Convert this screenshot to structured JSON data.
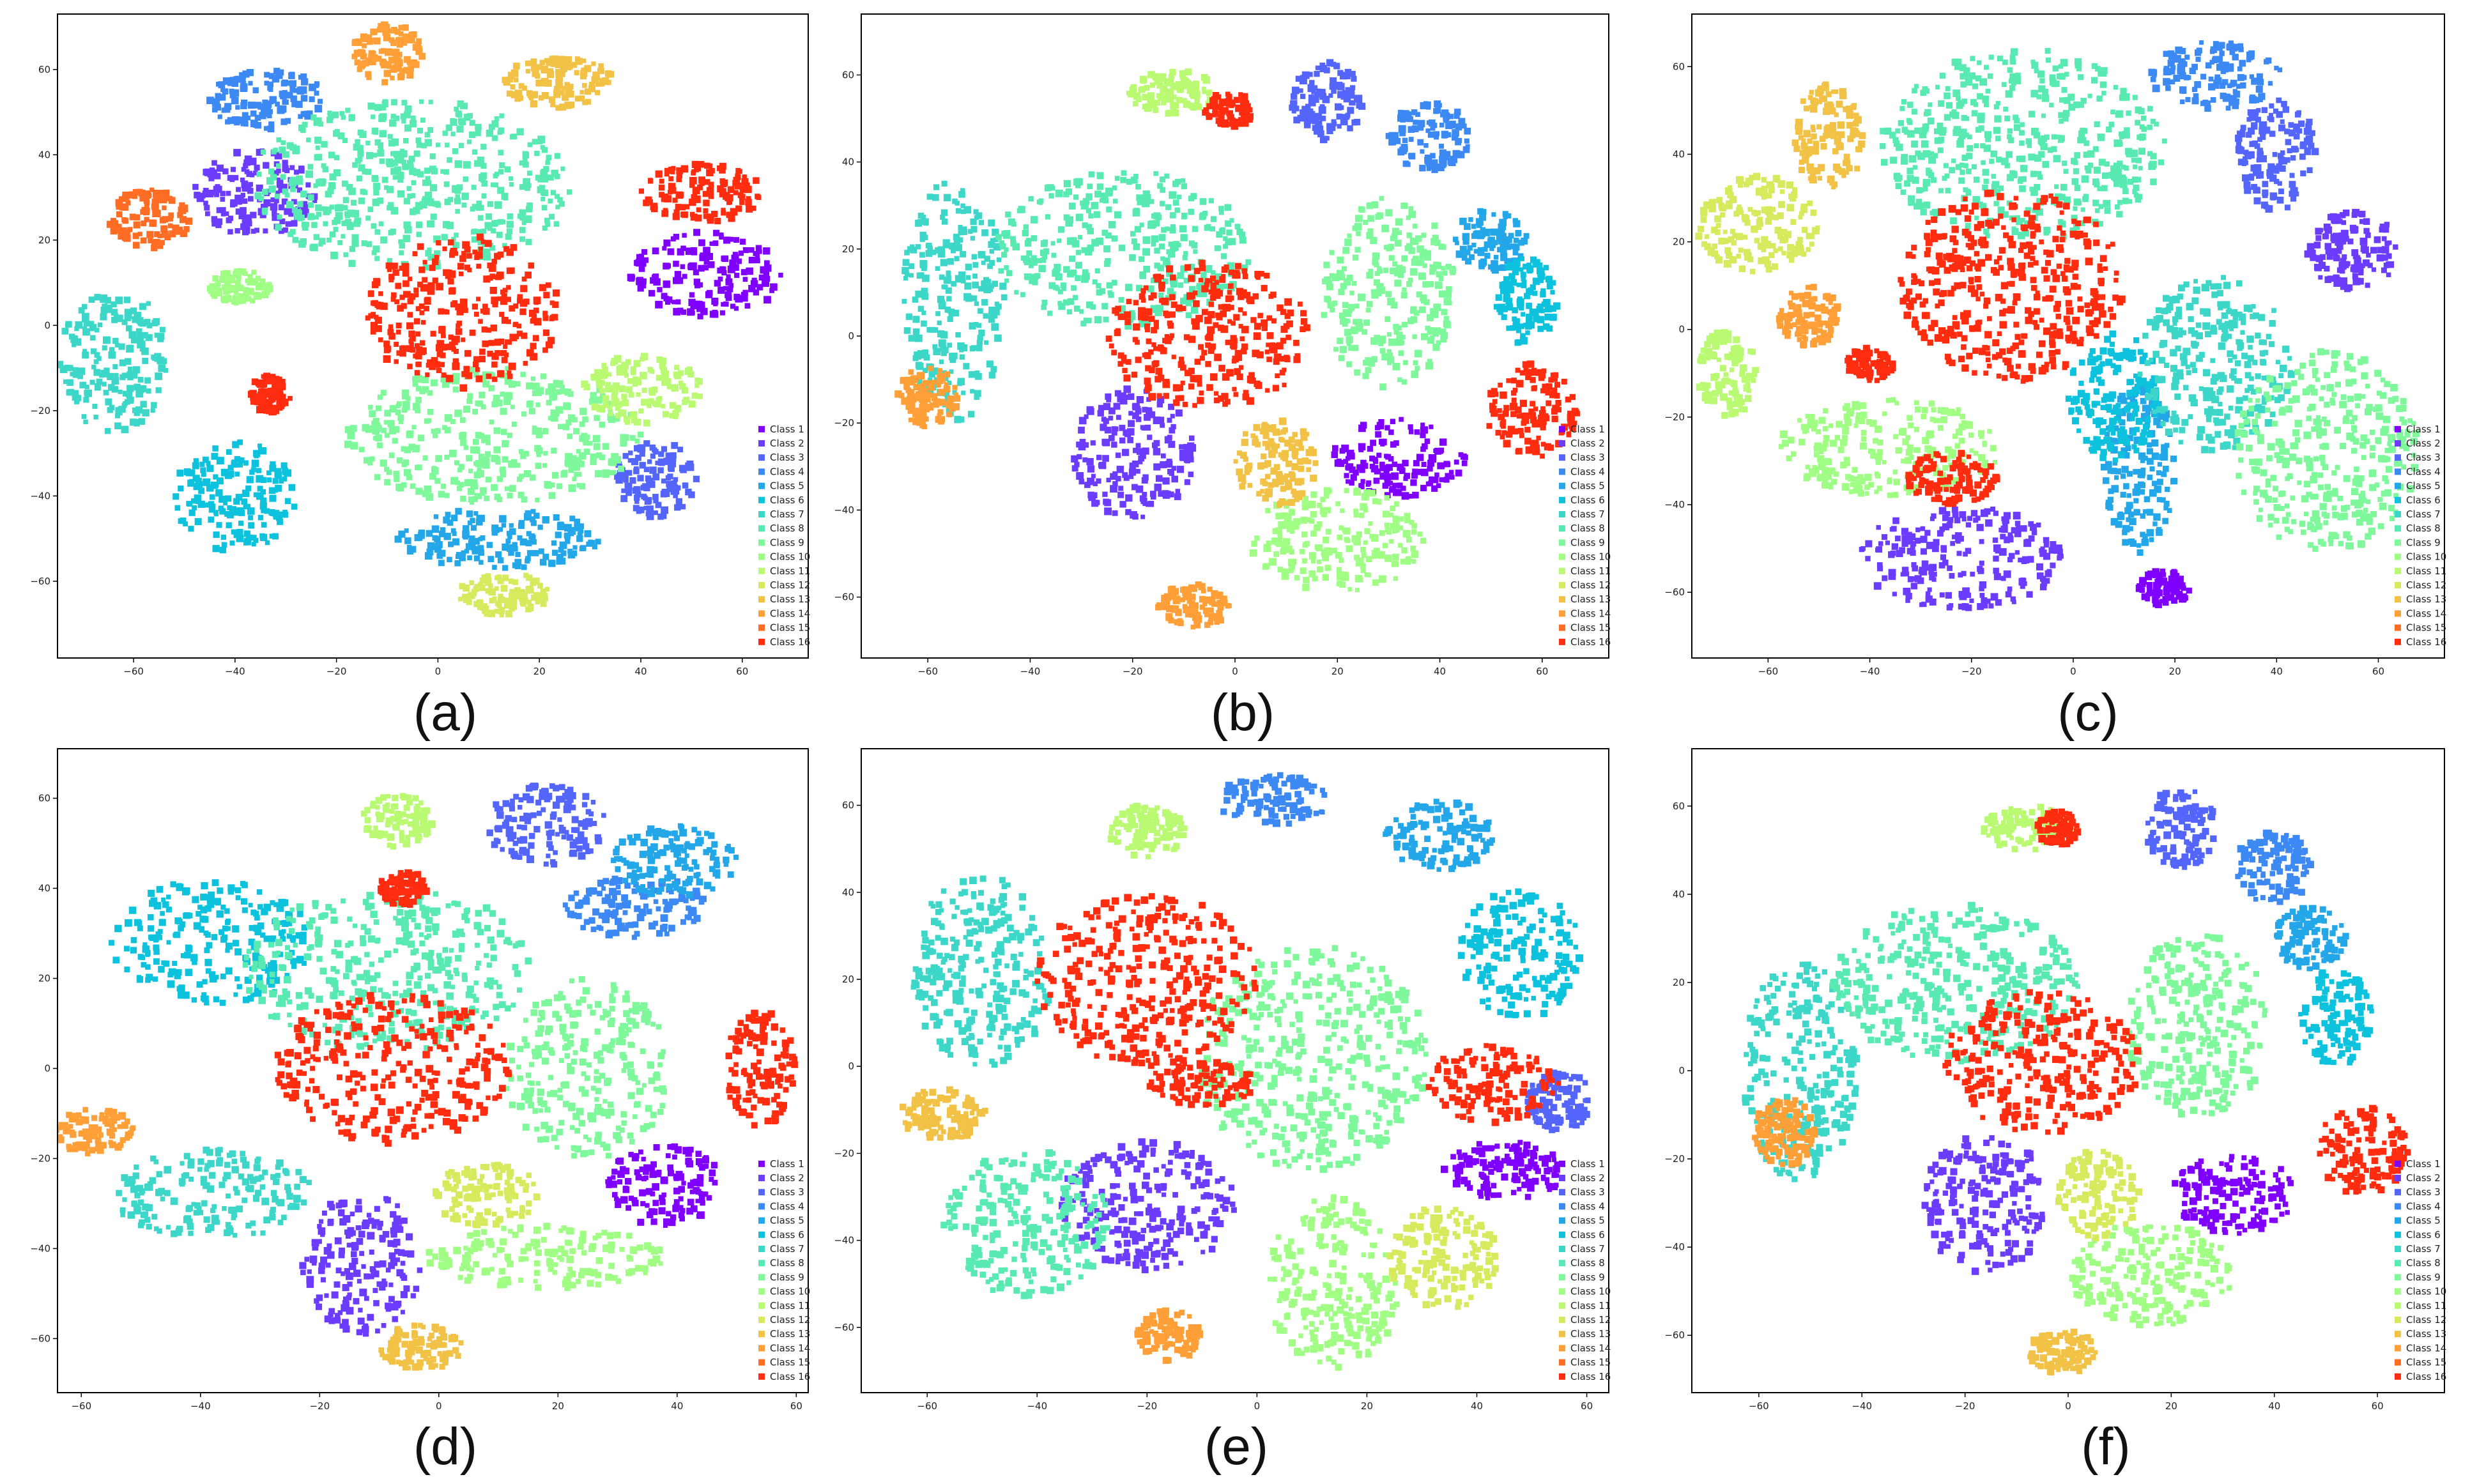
{
  "figure": {
    "layout": "2 rows x 3 columns"
  },
  "legend_labels": [
    "Class 1",
    "Class 2",
    "Class 3",
    "Class 4",
    "Class 5",
    "Class 6",
    "Class 7",
    "Class 8",
    "Class 9",
    "Class 10",
    "Class 11",
    "Class 12",
    "Class 13",
    "Class 14",
    "Class 15",
    "Class 16"
  ],
  "class_colors": [
    "#8000ff",
    "#6c3cfe",
    "#5465fb",
    "#3c89f4",
    "#24a7e9",
    "#0cc2dc",
    "#3dd7c9",
    "#59e9b3",
    "#7ef89b",
    "#a0fe85",
    "#bafa72",
    "#d7ea5d",
    "#f2c246",
    "#ff9f37",
    "#ff6c24",
    "#ff2c0f"
  ],
  "chart_data": [
    {
      "type": "scatter",
      "panel_label": "(a)",
      "title": "",
      "xlabel": "",
      "ylabel": "",
      "xlim": [
        -75,
        73
      ],
      "ylim": [
        -78,
        73
      ],
      "xticks": [
        -60,
        -40,
        -20,
        0,
        20,
        40,
        60
      ],
      "yticks": [
        -60,
        -40,
        -20,
        0,
        20,
        40,
        60
      ],
      "legend_position": "bottom-right",
      "clusters": [
        {
          "class": 1,
          "x": 53,
          "y": 12,
          "w": 30,
          "h": 20
        },
        {
          "class": 2,
          "x": -36,
          "y": 31,
          "w": 24,
          "h": 20
        },
        {
          "class": 3,
          "x": 43,
          "y": -36,
          "w": 16,
          "h": 18
        },
        {
          "class": 4,
          "x": -34,
          "y": 53,
          "w": 24,
          "h": 14
        },
        {
          "class": 5,
          "x": 12,
          "y": -50,
          "w": 40,
          "h": 14
        },
        {
          "class": 6,
          "x": -40,
          "y": -40,
          "w": 24,
          "h": 26
        },
        {
          "class": 7,
          "x": -64,
          "y": -8,
          "w": 22,
          "h": 34
        },
        {
          "class": 8,
          "x": -5,
          "y": 33,
          "w": 64,
          "h": 40
        },
        {
          "class": 9,
          "x": 11,
          "y": -26,
          "w": 58,
          "h": 32
        },
        {
          "class": 10,
          "x": -39,
          "y": 9,
          "w": 12,
          "h": 8
        },
        {
          "class": 11,
          "x": 40,
          "y": -15,
          "w": 24,
          "h": 16
        },
        {
          "class": 12,
          "x": 13,
          "y": -63,
          "w": 18,
          "h": 10
        },
        {
          "class": 13,
          "x": 24,
          "y": 57,
          "w": 22,
          "h": 12
        },
        {
          "class": 14,
          "x": -10,
          "y": 64,
          "w": 14,
          "h": 14
        },
        {
          "class": 15,
          "x": -57,
          "y": 25,
          "w": 16,
          "h": 14
        },
        {
          "class": 16,
          "x": 5,
          "y": 3,
          "w": 38,
          "h": 36
        },
        {
          "class": 16,
          "x": 52,
          "y": 31,
          "w": 24,
          "h": 14
        },
        {
          "class": 16,
          "x": -33,
          "y": -16,
          "w": 8,
          "h": 9
        }
      ]
    },
    {
      "type": "scatter",
      "panel_label": "(b)",
      "title": "",
      "xlabel": "",
      "ylabel": "",
      "xlim": [
        -73,
        73
      ],
      "ylim": [
        -74,
        74
      ],
      "xticks": [
        -60,
        -40,
        -20,
        0,
        20,
        40,
        60
      ],
      "yticks": [
        -60,
        -40,
        -20,
        0,
        20,
        40,
        60
      ],
      "legend_position": "bottom-right",
      "clusters": [
        {
          "class": 1,
          "x": 32,
          "y": -28,
          "w": 26,
          "h": 18
        },
        {
          "class": 2,
          "x": -20,
          "y": -27,
          "w": 24,
          "h": 30
        },
        {
          "class": 3,
          "x": 18,
          "y": 54,
          "w": 14,
          "h": 18
        },
        {
          "class": 4,
          "x": 38,
          "y": 46,
          "w": 16,
          "h": 16
        },
        {
          "class": 5,
          "x": 50,
          "y": 22,
          "w": 14,
          "h": 14
        },
        {
          "class": 6,
          "x": 57,
          "y": 8,
          "w": 12,
          "h": 20
        },
        {
          "class": 7,
          "x": -55,
          "y": 8,
          "w": 20,
          "h": 56
        },
        {
          "class": 8,
          "x": -22,
          "y": 20,
          "w": 50,
          "h": 36
        },
        {
          "class": 9,
          "x": 30,
          "y": 10,
          "w": 26,
          "h": 44
        },
        {
          "class": 10,
          "x": 20,
          "y": -47,
          "w": 34,
          "h": 24
        },
        {
          "class": 11,
          "x": -12,
          "y": 56,
          "w": 18,
          "h": 10
        },
        {
          "class": 13,
          "x": 8,
          "y": -29,
          "w": 16,
          "h": 20
        },
        {
          "class": 14,
          "x": -60,
          "y": -14,
          "w": 12,
          "h": 14
        },
        {
          "class": 14,
          "x": -8,
          "y": -62,
          "w": 14,
          "h": 10
        },
        {
          "class": 16,
          "x": -5,
          "y": 0,
          "w": 40,
          "h": 34
        },
        {
          "class": 16,
          "x": 58,
          "y": -17,
          "w": 18,
          "h": 22
        },
        {
          "class": 16,
          "x": -1,
          "y": 52,
          "w": 10,
          "h": 8
        }
      ]
    },
    {
      "type": "scatter",
      "panel_label": "(c)",
      "title": "",
      "xlabel": "",
      "ylabel": "",
      "xlim": [
        -75,
        73
      ],
      "ylim": [
        -75,
        72
      ],
      "xticks": [
        -60,
        -40,
        -20,
        0,
        20,
        40,
        60
      ],
      "yticks": [
        -60,
        -40,
        -20,
        0,
        20,
        40,
        60
      ],
      "legend_position": "bottom-right",
      "clusters": [
        {
          "class": 1,
          "x": 18,
          "y": -59,
          "w": 10,
          "h": 8
        },
        {
          "class": 2,
          "x": -22,
          "y": -52,
          "w": 40,
          "h": 24
        },
        {
          "class": 3,
          "x": 40,
          "y": 40,
          "w": 16,
          "h": 26
        },
        {
          "class": 4,
          "x": 28,
          "y": 58,
          "w": 26,
          "h": 16
        },
        {
          "class": 5,
          "x": 13,
          "y": -32,
          "w": 14,
          "h": 40
        },
        {
          "class": 6,
          "x": 8,
          "y": -15,
          "w": 18,
          "h": 30
        },
        {
          "class": 7,
          "x": 28,
          "y": -8,
          "w": 30,
          "h": 40
        },
        {
          "class": 8,
          "x": -10,
          "y": 42,
          "w": 56,
          "h": 44
        },
        {
          "class": 9,
          "x": 50,
          "y": -28,
          "w": 36,
          "h": 46
        },
        {
          "class": 10,
          "x": -36,
          "y": -27,
          "w": 44,
          "h": 22
        },
        {
          "class": 11,
          "x": -68,
          "y": -10,
          "w": 12,
          "h": 20
        },
        {
          "class": 12,
          "x": -62,
          "y": 24,
          "w": 24,
          "h": 22
        },
        {
          "class": 13,
          "x": -48,
          "y": 44,
          "w": 14,
          "h": 24
        },
        {
          "class": 14,
          "x": -52,
          "y": 3,
          "w": 12,
          "h": 14
        },
        {
          "class": 16,
          "x": -12,
          "y": 10,
          "w": 44,
          "h": 44
        },
        {
          "class": 16,
          "x": -24,
          "y": -34,
          "w": 18,
          "h": 12
        },
        {
          "class": 16,
          "x": -40,
          "y": -8,
          "w": 10,
          "h": 8
        },
        {
          "class": 2,
          "x": 55,
          "y": 18,
          "w": 18,
          "h": 18
        }
      ]
    },
    {
      "type": "scatter",
      "panel_label": "(d)",
      "title": "",
      "xlabel": "",
      "ylabel": "",
      "xlim": [
        -64,
        62
      ],
      "ylim": [
        -72,
        71
      ],
      "xticks": [
        -60,
        -40,
        -20,
        0,
        20,
        40,
        60
      ],
      "yticks": [
        -60,
        -40,
        -20,
        0,
        20,
        40,
        60
      ],
      "legend_position": "bottom-right",
      "clusters": [
        {
          "class": 1,
          "x": 38,
          "y": -26,
          "w": 20,
          "h": 18
        },
        {
          "class": 2,
          "x": -13,
          "y": -43,
          "w": 20,
          "h": 32
        },
        {
          "class": 3,
          "x": 18,
          "y": 54,
          "w": 20,
          "h": 18
        },
        {
          "class": 4,
          "x": 33,
          "y": 36,
          "w": 24,
          "h": 14
        },
        {
          "class": 5,
          "x": 40,
          "y": 46,
          "w": 22,
          "h": 16
        },
        {
          "class": 6,
          "x": -38,
          "y": 28,
          "w": 34,
          "h": 28
        },
        {
          "class": 7,
          "x": -38,
          "y": -28,
          "w": 34,
          "h": 20
        },
        {
          "class": 8,
          "x": -8,
          "y": 22,
          "w": 50,
          "h": 36
        },
        {
          "class": 9,
          "x": 25,
          "y": 0,
          "w": 28,
          "h": 40
        },
        {
          "class": 10,
          "x": 18,
          "y": -42,
          "w": 40,
          "h": 14
        },
        {
          "class": 11,
          "x": -7,
          "y": 55,
          "w": 12,
          "h": 12
        },
        {
          "class": 12,
          "x": 8,
          "y": -28,
          "w": 18,
          "h": 14
        },
        {
          "class": 13,
          "x": -3,
          "y": -62,
          "w": 14,
          "h": 10
        },
        {
          "class": 14,
          "x": -58,
          "y": -14,
          "w": 14,
          "h": 10
        },
        {
          "class": 16,
          "x": -8,
          "y": 0,
          "w": 40,
          "h": 34
        },
        {
          "class": 16,
          "x": 54,
          "y": 0,
          "w": 12,
          "h": 26
        },
        {
          "class": 16,
          "x": -6,
          "y": 40,
          "w": 8,
          "h": 8
        }
      ]
    },
    {
      "type": "scatter",
      "panel_label": "(e)",
      "title": "",
      "xlabel": "",
      "ylabel": "",
      "xlim": [
        -72,
        64
      ],
      "ylim": [
        -75,
        73
      ],
      "xticks": [
        -60,
        -40,
        -20,
        0,
        20,
        40,
        60
      ],
      "yticks": [
        -60,
        -40,
        -20,
        0,
        20,
        40,
        60
      ],
      "legend_position": "bottom-right",
      "clusters": [
        {
          "class": 1,
          "x": 45,
          "y": -24,
          "w": 22,
          "h": 14
        },
        {
          "class": 2,
          "x": -20,
          "y": -32,
          "w": 32,
          "h": 30
        },
        {
          "class": 3,
          "x": 55,
          "y": -8,
          "w": 12,
          "h": 14
        },
        {
          "class": 4,
          "x": 3,
          "y": 61,
          "w": 20,
          "h": 12
        },
        {
          "class": 5,
          "x": 33,
          "y": 53,
          "w": 20,
          "h": 16
        },
        {
          "class": 6,
          "x": 48,
          "y": 26,
          "w": 22,
          "h": 30
        },
        {
          "class": 7,
          "x": -50,
          "y": 22,
          "w": 26,
          "h": 44
        },
        {
          "class": 8,
          "x": -42,
          "y": -36,
          "w": 30,
          "h": 34
        },
        {
          "class": 9,
          "x": 10,
          "y": 2,
          "w": 42,
          "h": 52
        },
        {
          "class": 10,
          "x": 14,
          "y": -50,
          "w": 24,
          "h": 40
        },
        {
          "class": 11,
          "x": -20,
          "y": 54,
          "w": 14,
          "h": 12
        },
        {
          "class": 12,
          "x": 34,
          "y": -44,
          "w": 20,
          "h": 24
        },
        {
          "class": 13,
          "x": -57,
          "y": -11,
          "w": 16,
          "h": 12
        },
        {
          "class": 14,
          "x": -16,
          "y": -62,
          "w": 12,
          "h": 12
        },
        {
          "class": 16,
          "x": -20,
          "y": 20,
          "w": 40,
          "h": 40
        },
        {
          "class": 16,
          "x": 43,
          "y": -4,
          "w": 24,
          "h": 18
        },
        {
          "class": 16,
          "x": -10,
          "y": -4,
          "w": 20,
          "h": 10
        }
      ]
    },
    {
      "type": "scatter",
      "panel_label": "(f)",
      "title": "",
      "xlabel": "",
      "ylabel": "",
      "xlim": [
        -73,
        73
      ],
      "ylim": [
        -73,
        73
      ],
      "xticks": [
        -60,
        -40,
        -20,
        0,
        20,
        40,
        60
      ],
      "yticks": [
        -60,
        -40,
        -20,
        0,
        20,
        40,
        60
      ],
      "legend_position": "bottom-right",
      "clusters": [
        {
          "class": 1,
          "x": 32,
          "y": -28,
          "w": 24,
          "h": 18
        },
        {
          "class": 2,
          "x": -16,
          "y": -30,
          "w": 24,
          "h": 32
        },
        {
          "class": 3,
          "x": 22,
          "y": 55,
          "w": 14,
          "h": 18
        },
        {
          "class": 4,
          "x": 40,
          "y": 46,
          "w": 16,
          "h": 16
        },
        {
          "class": 5,
          "x": 47,
          "y": 30,
          "w": 14,
          "h": 14
        },
        {
          "class": 6,
          "x": 52,
          "y": 12,
          "w": 14,
          "h": 22
        },
        {
          "class": 7,
          "x": -52,
          "y": 0,
          "w": 22,
          "h": 50
        },
        {
          "class": 8,
          "x": -22,
          "y": 20,
          "w": 48,
          "h": 36
        },
        {
          "class": 9,
          "x": 25,
          "y": 10,
          "w": 28,
          "h": 42
        },
        {
          "class": 10,
          "x": 16,
          "y": -46,
          "w": 32,
          "h": 24
        },
        {
          "class": 11,
          "x": -8,
          "y": 55,
          "w": 18,
          "h": 10
        },
        {
          "class": 12,
          "x": 6,
          "y": -28,
          "w": 16,
          "h": 20
        },
        {
          "class": 13,
          "x": -1,
          "y": -64,
          "w": 14,
          "h": 10
        },
        {
          "class": 14,
          "x": -55,
          "y": -14,
          "w": 12,
          "h": 16
        },
        {
          "class": 16,
          "x": -5,
          "y": 2,
          "w": 38,
          "h": 32
        },
        {
          "class": 16,
          "x": 57,
          "y": -18,
          "w": 18,
          "h": 20
        },
        {
          "class": 16,
          "x": -2,
          "y": 55,
          "w": 8,
          "h": 8
        }
      ]
    }
  ]
}
